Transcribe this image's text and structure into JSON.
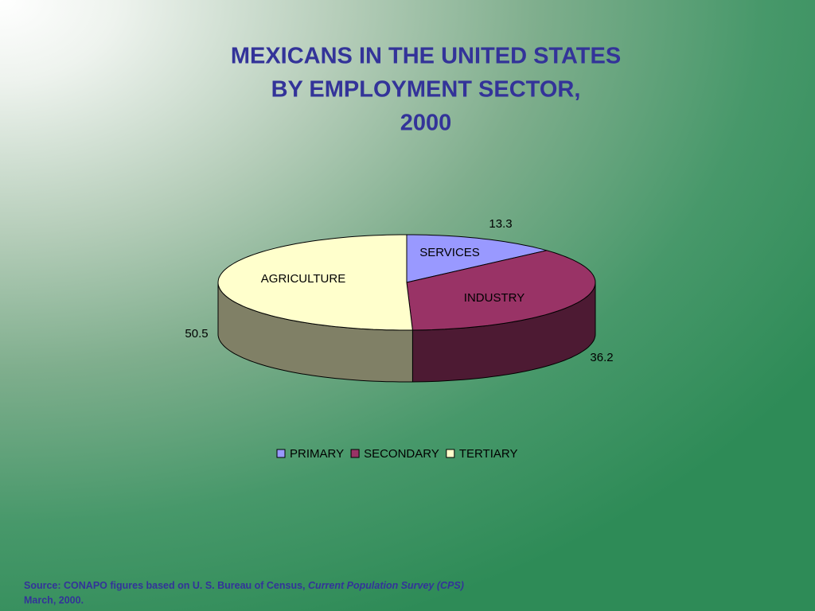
{
  "chart_data": {
    "type": "pie",
    "title": [
      "MEXICANS IN THE UNITED STATES",
      "BY EMPLOYMENT SECTOR,",
      "2000"
    ],
    "categories": [
      "PRIMARY",
      "SECONDARY",
      "TERTIARY"
    ],
    "values": [
      13.3,
      36.2,
      50.5
    ],
    "colors": [
      "#9999ff",
      "#993366",
      "#ffffcc"
    ],
    "side_colors": [
      "#5c5c99",
      "#4d1a33",
      "#808066"
    ],
    "slice_labels": [
      "SERVICES",
      "INDUSTRY",
      "AGRICULTURE"
    ],
    "source": {
      "text": "Source: CONAPO figures based on U. S. Bureau of Census,",
      "italic": "Current Population Survey (CPS)",
      "line2": "March, 2000."
    }
  }
}
